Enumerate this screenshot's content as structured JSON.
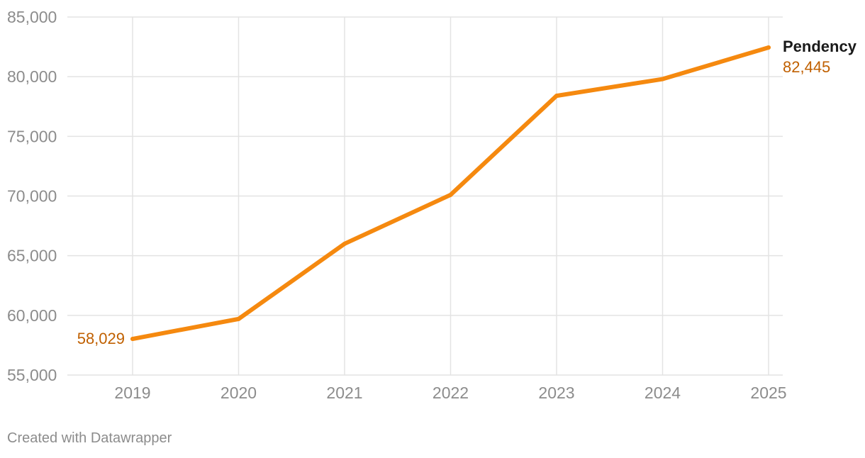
{
  "chart_data": {
    "type": "line",
    "x": [
      "2019",
      "2020",
      "2021",
      "2022",
      "2023",
      "2024",
      "2025"
    ],
    "series": [
      {
        "name": "Pendency",
        "values": [
          58029,
          59700,
          66000,
          70100,
          78400,
          79800,
          82445
        ],
        "color": "#f5890f"
      }
    ],
    "ylim": [
      55000,
      85000
    ],
    "yticks": [
      55000,
      60000,
      65000,
      70000,
      75000,
      80000,
      85000
    ],
    "ytick_labels": [
      "55,000",
      "60,000",
      "65,000",
      "70,000",
      "75,000",
      "80,000",
      "85,000"
    ],
    "grid": true,
    "start_label": "58,029",
    "end_label": "82,445",
    "label_color": "#c06000",
    "title": "",
    "xlabel": "",
    "ylabel": ""
  },
  "footer": {
    "credit": "Created with Datawrapper"
  }
}
